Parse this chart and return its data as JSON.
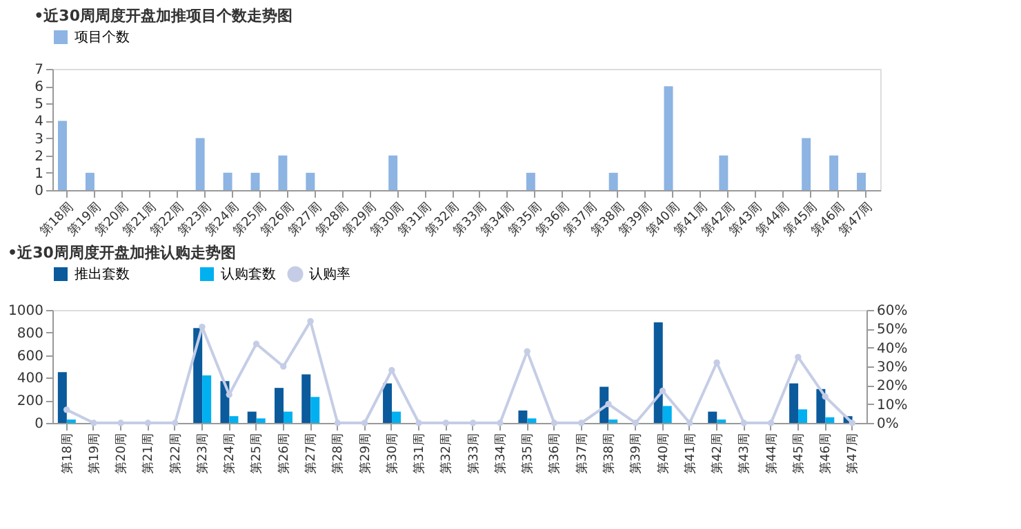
{
  "chart_data": [
    {
      "type": "bar",
      "title": "•近30周周度开盘加推项目个数走势图",
      "categories": [
        "第18周",
        "第19周",
        "第20周",
        "第21周",
        "第22周",
        "第23周",
        "第24周",
        "第25周",
        "第26周",
        "第27周",
        "第28周",
        "第29周",
        "第30周",
        "第31周",
        "第32周",
        "第33周",
        "第34周",
        "第35周",
        "第36周",
        "第37周",
        "第38周",
        "第39周",
        "第40周",
        "第41周",
        "第42周",
        "第43周",
        "第44周",
        "第45周",
        "第46周",
        "第47周"
      ],
      "series": [
        {
          "name": "项目个数",
          "color": "#8db4e2",
          "values": [
            4,
            1,
            0,
            0,
            0,
            3,
            1,
            1,
            2,
            1,
            0,
            0,
            2,
            0,
            0,
            0,
            0,
            1,
            0,
            0,
            1,
            0,
            6,
            0,
            2,
            0,
            0,
            3,
            2,
            1
          ]
        }
      ],
      "ylim": [
        0,
        7
      ],
      "yticks": [
        0,
        1,
        2,
        3,
        4,
        5,
        6,
        7
      ],
      "grid": false,
      "legend": "top"
    },
    {
      "type": "bar",
      "title": "•近30周周度开盘加推认购走势图",
      "categories": [
        "第18周",
        "第19周",
        "第20周",
        "第21周",
        "第22周",
        "第23周",
        "第24周",
        "第25周",
        "第26周",
        "第27周",
        "第28周",
        "第29周",
        "第30周",
        "第31周",
        "第32周",
        "第33周",
        "第34周",
        "第35周",
        "第36周",
        "第37周",
        "第38周",
        "第39周",
        "第40周",
        "第41周",
        "第42周",
        "第43周",
        "第44周",
        "第45周",
        "第46周",
        "第47周"
      ],
      "series": [
        {
          "name": "推出套数",
          "color": "#0a5a9c",
          "values": [
            450,
            0,
            0,
            0,
            0,
            840,
            370,
            100,
            310,
            430,
            0,
            0,
            350,
            0,
            0,
            0,
            0,
            110,
            0,
            0,
            320,
            0,
            890,
            0,
            100,
            0,
            0,
            350,
            300,
            60
          ]
        },
        {
          "name": "认购套数",
          "color": "#00b0f0",
          "values": [
            30,
            0,
            0,
            0,
            0,
            420,
            60,
            40,
            100,
            230,
            0,
            0,
            100,
            0,
            0,
            0,
            0,
            40,
            0,
            0,
            30,
            0,
            150,
            0,
            30,
            0,
            0,
            120,
            50,
            0
          ]
        },
        {
          "name": "认购率",
          "type": "line",
          "axis": "y2",
          "color": "#c5cde6",
          "marker": "circle",
          "values": [
            7,
            0,
            0,
            0,
            0,
            51,
            15,
            42,
            30,
            54,
            0,
            0,
            28,
            0,
            0,
            0,
            0,
            38,
            0,
            0,
            10,
            0,
            17,
            0,
            32,
            0,
            0,
            35,
            14,
            0
          ]
        }
      ],
      "ylim": [
        0,
        1000
      ],
      "yticks": [
        0,
        200,
        400,
        600,
        800,
        {
          "value": 1000,
          "label": "1000"
        }
      ],
      "y2lim": [
        0,
        60
      ],
      "y2ticks": [
        {
          "value": 0,
          "label": "0%"
        },
        {
          "value": 10,
          "label": "10%"
        },
        {
          "value": 20,
          "label": "20%"
        },
        {
          "value": 30,
          "label": "30%"
        },
        {
          "value": 40,
          "label": "40%"
        },
        {
          "value": 50,
          "label": "50%"
        },
        {
          "value": 60,
          "label": "60%"
        }
      ],
      "grid": false,
      "legend": "top"
    }
  ]
}
